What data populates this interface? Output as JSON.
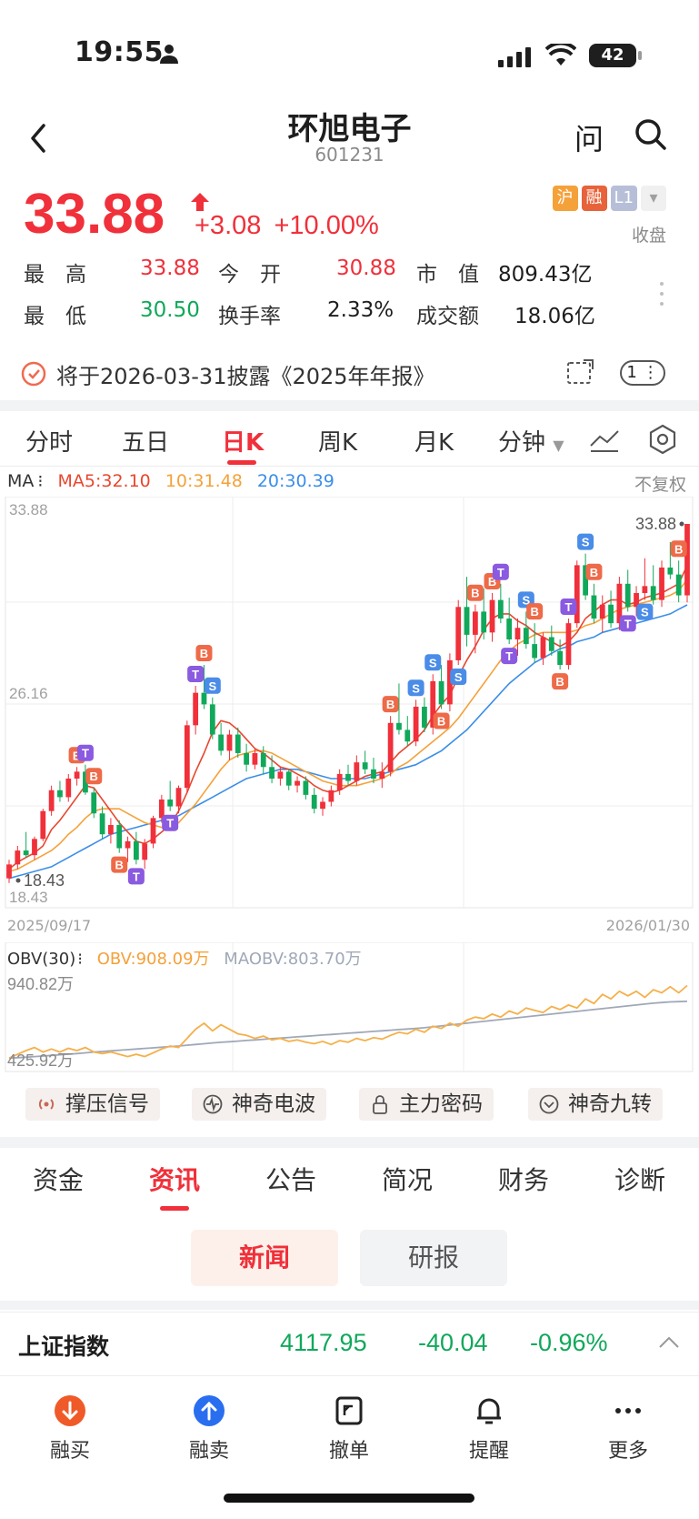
{
  "status_bar": {
    "time": "19:55",
    "battery": "42"
  },
  "header": {
    "title": "环旭电子",
    "code": "601231",
    "ask_label": "问"
  },
  "quote": {
    "price": "33.88",
    "change": "+3.08",
    "change_pct": "+10.00%",
    "tags": [
      "沪",
      "融",
      "L1"
    ],
    "market_status": "收盘",
    "stats": [
      [
        {
          "label": "最　高",
          "value": "33.88"
        },
        {
          "label": "今　开",
          "value": "30.88"
        },
        {
          "label": "市　值",
          "value": "809.43亿"
        }
      ],
      [
        {
          "label": "最　低",
          "value": "30.50"
        },
        {
          "label": "换手率",
          "value": "2.33%"
        },
        {
          "label": "成交额",
          "value": "18.06亿"
        }
      ]
    ]
  },
  "notice": {
    "text": "将于2026-03-31披露《2025年年报》",
    "count": "1"
  },
  "chart_tabs": [
    "分时",
    "五日",
    "日K",
    "周K",
    "月K",
    "分钟"
  ],
  "active_chart_tab": "日K",
  "ma_legend": {
    "label": "MA",
    "ma5": "MA5:32.10",
    "ma10": "10:31.48",
    "ma20": "20:30.39"
  },
  "adjust_label": "不复权",
  "colors": {
    "up": "#f0303a",
    "down": "#10a85a",
    "ma5": "#e8472f",
    "ma10": "#f5a13a",
    "ma20": "#3b8ee8",
    "obv": "#f5b04a",
    "maobv": "#a0a8b8",
    "buy_marker": "#ee6a48",
    "sell_marker": "#4a8ce8",
    "t_marker": "#8a5ae0"
  },
  "chart_data": {
    "type": "candlestick",
    "price_labels": {
      "top": "33.88",
      "mid": "26.16",
      "bottom": "18.43"
    },
    "high_marker": "33.88",
    "low_marker": "18.43",
    "ylim": [
      18.43,
      33.88
    ],
    "date_start": "2025/09/17",
    "date_end": "2026/01/30",
    "candles": [
      [
        18.6,
        19.4,
        18.4,
        19.2
      ],
      [
        19.2,
        20.0,
        19.0,
        19.8
      ],
      [
        19.8,
        20.6,
        19.5,
        19.6
      ],
      [
        19.6,
        20.4,
        19.4,
        20.3
      ],
      [
        20.3,
        21.6,
        20.2,
        21.5
      ],
      [
        21.5,
        22.6,
        21.3,
        22.4
      ],
      [
        22.4,
        22.8,
        21.9,
        22.1
      ],
      [
        22.1,
        23.1,
        21.9,
        22.9
      ],
      [
        22.9,
        23.4,
        22.6,
        23.2
      ],
      [
        23.2,
        23.5,
        22.2,
        22.3
      ],
      [
        22.3,
        22.5,
        21.2,
        21.4
      ],
      [
        21.4,
        21.7,
        20.3,
        20.5
      ],
      [
        20.5,
        21.2,
        20.1,
        20.9
      ],
      [
        20.9,
        21.1,
        19.7,
        19.9
      ],
      [
        19.9,
        20.4,
        19.3,
        20.2
      ],
      [
        20.2,
        20.6,
        19.2,
        19.4
      ],
      [
        19.4,
        20.3,
        19.0,
        20.1
      ],
      [
        20.1,
        21.3,
        19.9,
        21.2
      ],
      [
        21.2,
        22.2,
        21.0,
        22.0
      ],
      [
        22.0,
        22.8,
        21.5,
        21.7
      ],
      [
        21.7,
        22.6,
        21.4,
        22.5
      ],
      [
        22.5,
        25.4,
        22.3,
        25.2
      ],
      [
        25.2,
        26.9,
        24.8,
        26.6
      ],
      [
        26.6,
        27.8,
        25.9,
        26.1
      ],
      [
        26.1,
        26.4,
        24.6,
        24.8
      ],
      [
        24.8,
        25.3,
        23.9,
        24.1
      ],
      [
        24.1,
        25.0,
        23.7,
        24.8
      ],
      [
        24.8,
        25.1,
        23.8,
        24.0
      ],
      [
        24.0,
        24.4,
        23.2,
        23.5
      ],
      [
        23.5,
        24.2,
        23.3,
        24.0
      ],
      [
        24.0,
        24.3,
        23.1,
        23.4
      ],
      [
        23.4,
        23.9,
        22.7,
        22.9
      ],
      [
        22.9,
        23.4,
        22.6,
        23.2
      ],
      [
        23.2,
        23.3,
        22.4,
        22.6
      ],
      [
        22.6,
        23.0,
        22.3,
        22.8
      ],
      [
        22.8,
        23.0,
        22.0,
        22.2
      ],
      [
        22.2,
        22.5,
        21.4,
        21.6
      ],
      [
        21.6,
        22.1,
        21.3,
        21.9
      ],
      [
        21.9,
        22.6,
        21.7,
        22.4
      ],
      [
        22.4,
        23.3,
        22.2,
        23.1
      ],
      [
        23.1,
        23.5,
        22.6,
        22.8
      ],
      [
        22.8,
        23.9,
        22.6,
        23.6
      ],
      [
        23.6,
        24.1,
        23.1,
        23.3
      ],
      [
        23.3,
        23.8,
        22.7,
        22.9
      ],
      [
        22.9,
        23.6,
        22.5,
        23.2
      ],
      [
        23.2,
        25.6,
        23.0,
        25.3
      ],
      [
        25.3,
        27.0,
        24.8,
        25.0
      ],
      [
        25.0,
        25.6,
        24.3,
        24.5
      ],
      [
        24.5,
        26.3,
        24.3,
        26.0
      ],
      [
        26.0,
        26.4,
        24.9,
        25.1
      ],
      [
        25.1,
        27.4,
        24.8,
        27.1
      ],
      [
        27.1,
        27.8,
        25.9,
        26.1
      ],
      [
        26.1,
        28.3,
        25.8,
        28.0
      ],
      [
        28.0,
        30.6,
        27.8,
        30.3
      ],
      [
        30.3,
        31.6,
        28.6,
        29.1
      ],
      [
        29.1,
        30.4,
        28.3,
        30.1
      ],
      [
        30.1,
        31.1,
        28.9,
        29.2
      ],
      [
        29.2,
        30.9,
        28.8,
        30.6
      ],
      [
        30.6,
        31.3,
        29.6,
        29.8
      ],
      [
        29.8,
        30.7,
        28.7,
        28.9
      ],
      [
        28.9,
        29.8,
        28.2,
        29.4
      ],
      [
        29.4,
        30.1,
        28.5,
        28.7
      ],
      [
        28.7,
        29.6,
        27.9,
        28.1
      ],
      [
        28.1,
        29.2,
        27.8,
        29.0
      ],
      [
        29.0,
        29.5,
        28.2,
        28.4
      ],
      [
        28.4,
        28.9,
        27.6,
        27.8
      ],
      [
        27.8,
        29.8,
        27.6,
        29.6
      ],
      [
        29.6,
        32.3,
        29.4,
        32.1
      ],
      [
        32.1,
        32.6,
        30.6,
        30.8
      ],
      [
        30.8,
        31.3,
        29.6,
        29.8
      ],
      [
        29.8,
        30.8,
        29.2,
        30.4
      ],
      [
        30.4,
        31.0,
        29.4,
        29.6
      ],
      [
        29.6,
        31.6,
        29.3,
        31.3
      ],
      [
        31.3,
        31.9,
        30.1,
        30.3
      ],
      [
        30.3,
        31.2,
        29.9,
        30.9
      ],
      [
        30.9,
        32.4,
        30.6,
        31.2
      ],
      [
        31.2,
        32.1,
        30.4,
        30.6
      ],
      [
        30.6,
        32.3,
        30.3,
        32.0
      ],
      [
        32.0,
        33.1,
        31.5,
        31.7
      ],
      [
        31.7,
        32.3,
        30.5,
        30.8
      ],
      [
        30.8,
        33.88,
        30.5,
        33.88
      ]
    ],
    "ma5": [
      19.0,
      19.3,
      19.5,
      19.7,
      20.0,
      20.7,
      21.1,
      21.6,
      22.1,
      22.6,
      22.5,
      22.0,
      21.5,
      21.0,
      20.6,
      20.2,
      20.1,
      20.3,
      20.6,
      20.9,
      21.5,
      22.3,
      23.2,
      24.0,
      24.9,
      25.4,
      25.3,
      25.0,
      24.6,
      24.2,
      24.0,
      23.7,
      23.4,
      23.3,
      23.1,
      22.9,
      22.6,
      22.4,
      22.3,
      22.4,
      22.6,
      22.8,
      23.0,
      23.1,
      23.2,
      23.6,
      24.0,
      24.3,
      24.6,
      25.0,
      25.6,
      26.1,
      26.5,
      27.3,
      28.0,
      28.6,
      29.3,
      29.8,
      30.0,
      30.0,
      29.7,
      29.5,
      29.2,
      29.0,
      28.8,
      28.6,
      28.8,
      29.2,
      29.8,
      30.1,
      30.4,
      30.6,
      30.6,
      30.4,
      30.5,
      30.7,
      30.8,
      30.9,
      31.1,
      31.3,
      32.1
    ],
    "ma10": [
      18.9,
      19.0,
      19.2,
      19.4,
      19.6,
      19.8,
      20.1,
      20.5,
      20.8,
      21.2,
      21.5,
      21.6,
      21.6,
      21.6,
      21.4,
      21.2,
      21.0,
      20.9,
      20.8,
      20.8,
      21.0,
      21.4,
      21.8,
      22.3,
      22.8,
      23.3,
      23.7,
      23.9,
      24.0,
      24.1,
      24.1,
      24.0,
      23.8,
      23.6,
      23.4,
      23.2,
      23.0,
      22.8,
      22.7,
      22.6,
      22.6,
      22.6,
      22.7,
      22.8,
      22.9,
      23.1,
      23.4,
      23.6,
      23.9,
      24.2,
      24.5,
      24.8,
      25.1,
      25.5,
      26.0,
      26.5,
      27.0,
      27.5,
      28.0,
      28.4,
      28.7,
      28.9,
      29.1,
      29.2,
      29.2,
      29.2,
      29.2,
      29.3,
      29.5,
      29.6,
      29.8,
      30.0,
      30.2,
      30.3,
      30.4,
      30.5,
      30.6,
      30.7,
      30.8,
      31.0,
      31.48
    ],
    "ma20": [
      18.6,
      18.7,
      18.8,
      18.9,
      19.0,
      19.1,
      19.3,
      19.5,
      19.7,
      19.9,
      20.1,
      20.3,
      20.5,
      20.6,
      20.7,
      20.8,
      20.9,
      21.0,
      21.1,
      21.2,
      21.3,
      21.5,
      21.7,
      21.9,
      22.1,
      22.3,
      22.5,
      22.7,
      22.9,
      23.0,
      23.1,
      23.2,
      23.3,
      23.3,
      23.3,
      23.2,
      23.1,
      23.0,
      22.9,
      22.9,
      22.9,
      22.9,
      22.9,
      23.0,
      23.1,
      23.2,
      23.3,
      23.4,
      23.5,
      23.7,
      23.9,
      24.1,
      24.4,
      24.7,
      25.0,
      25.4,
      25.8,
      26.2,
      26.6,
      27.0,
      27.3,
      27.6,
      27.9,
      28.1,
      28.3,
      28.5,
      28.6,
      28.8,
      28.9,
      29.0,
      29.2,
      29.3,
      29.4,
      29.5,
      29.6,
      29.7,
      29.8,
      29.9,
      30.0,
      30.2,
      30.39
    ],
    "markers": [
      {
        "i": 13,
        "t": "B",
        "pos": "below"
      },
      {
        "i": 15,
        "t": "T",
        "pos": "below"
      },
      {
        "i": 8,
        "t": "B",
        "pos": "above"
      },
      {
        "i": 9,
        "t": "T",
        "pos": "above"
      },
      {
        "i": 10,
        "t": "B",
        "pos": "above"
      },
      {
        "i": 19,
        "t": "T",
        "pos": "below"
      },
      {
        "i": 22,
        "t": "T",
        "pos": "above"
      },
      {
        "i": 23,
        "t": "B",
        "pos": "above"
      },
      {
        "i": 24,
        "t": "S",
        "pos": "above"
      },
      {
        "i": 45,
        "t": "B",
        "pos": "above"
      },
      {
        "i": 48,
        "t": "S",
        "pos": "above"
      },
      {
        "i": 50,
        "t": "S",
        "pos": "above"
      },
      {
        "i": 51,
        "t": "B",
        "pos": "below"
      },
      {
        "i": 53,
        "t": "S",
        "pos": "below"
      },
      {
        "i": 55,
        "t": "B",
        "pos": "above"
      },
      {
        "i": 57,
        "t": "B",
        "pos": "above"
      },
      {
        "i": 58,
        "t": "T",
        "pos": "above"
      },
      {
        "i": 59,
        "t": "T",
        "pos": "below"
      },
      {
        "i": 61,
        "t": "S",
        "pos": "above"
      },
      {
        "i": 62,
        "t": "B",
        "pos": "above"
      },
      {
        "i": 65,
        "t": "B",
        "pos": "below"
      },
      {
        "i": 66,
        "t": "T",
        "pos": "above"
      },
      {
        "i": 68,
        "t": "S",
        "pos": "above"
      },
      {
        "i": 69,
        "t": "B",
        "pos": "above"
      },
      {
        "i": 73,
        "t": "T",
        "pos": "below"
      },
      {
        "i": 75,
        "t": "S",
        "pos": "below"
      },
      {
        "i": 79,
        "t": "B",
        "pos": "above"
      }
    ]
  },
  "obv_legend": {
    "label": "OBV(30)",
    "obv": "OBV:908.09万",
    "maobv": "MAOBV:803.70万"
  },
  "obv_data": {
    "type": "line",
    "top_label": "940.82万",
    "bottom_label": "425.92万",
    "ylim": [
      425.92,
      940.82
    ],
    "obv": [
      430,
      455,
      480,
      500,
      470,
      490,
      470,
      495,
      480,
      500,
      470,
      460,
      470,
      455,
      440,
      455,
      440,
      465,
      490,
      510,
      500,
      560,
      620,
      660,
      610,
      650,
      620,
      590,
      580,
      560,
      575,
      550,
      560,
      540,
      550,
      535,
      525,
      540,
      520,
      545,
      535,
      560,
      545,
      565,
      555,
      580,
      600,
      590,
      620,
      600,
      640,
      625,
      660,
      640,
      680,
      700,
      690,
      720,
      700,
      740,
      720,
      760,
      745,
      730,
      770,
      750,
      780,
      760,
      820,
      790,
      850,
      820,
      870,
      840,
      870,
      830,
      880,
      860,
      900,
      860,
      908.09
    ],
    "maobv": [
      430,
      433,
      436,
      440,
      444,
      448,
      452,
      456,
      460,
      465,
      470,
      474,
      478,
      482,
      486,
      490,
      494,
      498,
      502,
      506,
      510,
      515,
      520,
      525,
      530,
      534,
      538,
      542,
      546,
      550,
      554,
      558,
      562,
      566,
      570,
      574,
      578,
      582,
      586,
      590,
      594,
      598,
      602,
      606,
      610,
      614,
      618,
      622,
      626,
      630,
      636,
      642,
      648,
      654,
      660,
      666,
      672,
      678,
      684,
      690,
      696,
      702,
      708,
      714,
      720,
      726,
      732,
      738,
      744,
      750,
      756,
      762,
      768,
      774,
      780,
      786,
      792,
      796,
      800,
      802,
      803.7
    ]
  },
  "tools": [
    "撑压信号",
    "神奇电波",
    "主力密码",
    "神奇九转"
  ],
  "info_tabs": [
    "资金",
    "资讯",
    "公告",
    "简况",
    "财务",
    "诊断"
  ],
  "active_info_tab": "资讯",
  "sub_tabs": {
    "active": "新闻",
    "inactive": "研报"
  },
  "index": {
    "name": "上证指数",
    "value": "4117.95",
    "change": "-40.04",
    "change_pct": "-0.96%"
  },
  "bottom_bar": [
    "融买",
    "融卖",
    "撤单",
    "提醒",
    "更多"
  ]
}
